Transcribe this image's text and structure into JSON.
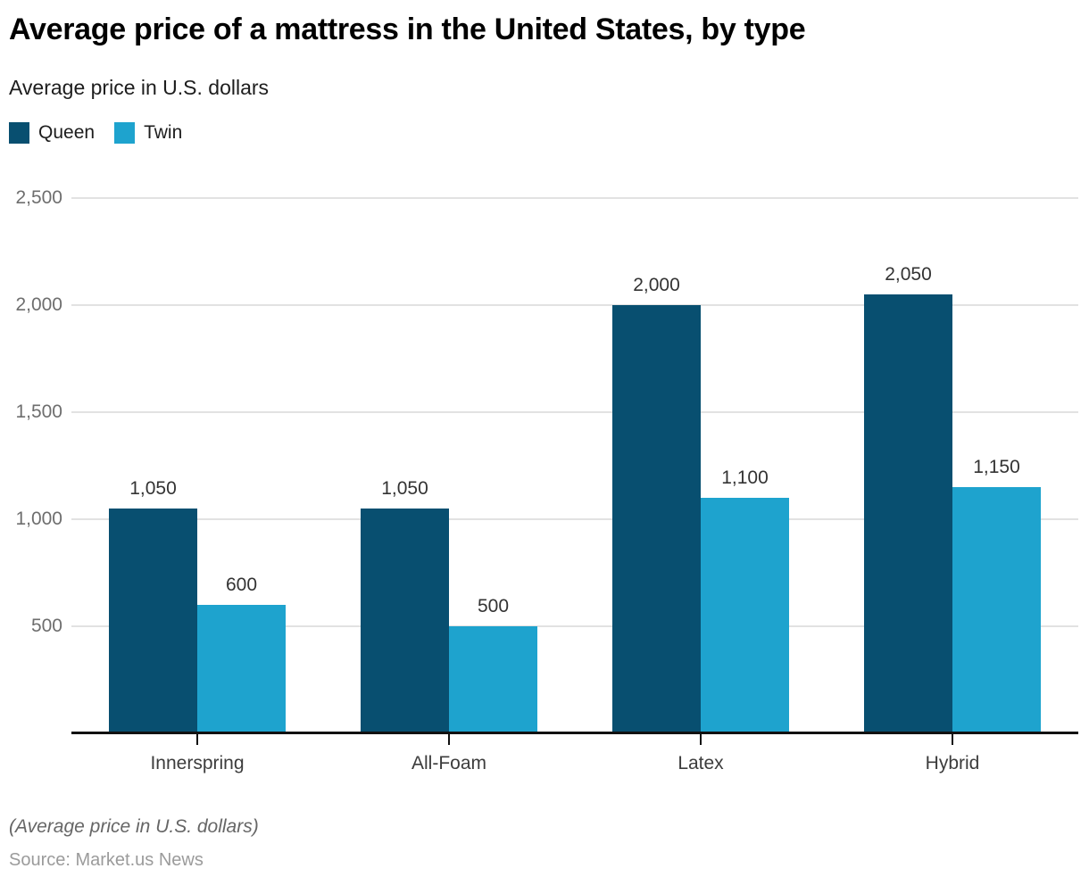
{
  "header": {
    "title": "Average price of a mattress in the United States, by type",
    "subtitle": "Average price in U.S. dollars"
  },
  "chart_data": {
    "type": "bar",
    "title": "Average price of a mattress in the United States, by type",
    "ylabel": "Average price in U.S. dollars",
    "xlabel": "",
    "categories": [
      "Innerspring",
      "All-Foam",
      "Latex",
      "Hybrid"
    ],
    "series": [
      {
        "name": "Queen",
        "color": "#084f70",
        "values": [
          1050,
          1050,
          2000,
          2050
        ],
        "labels": [
          "1,050",
          "1,050",
          "2,000",
          "2,050"
        ]
      },
      {
        "name": "Twin",
        "color": "#1ea3ce",
        "values": [
          600,
          500,
          1100,
          1150
        ],
        "labels": [
          "600",
          "500",
          "1,100",
          "1,150"
        ]
      }
    ],
    "yticks": [
      {
        "value": 500,
        "label": "500"
      },
      {
        "value": 1000,
        "label": "1,000"
      },
      {
        "value": 1500,
        "label": "1,500"
      },
      {
        "value": 2000,
        "label": "2,000"
      },
      {
        "value": 2500,
        "label": "2,500"
      }
    ],
    "ylim": [
      0,
      2500
    ],
    "grid": "horizontal",
    "legend_position": "top-left"
  },
  "footer": {
    "note": "(Average price in U.S. dollars)",
    "source": "Source: Market.us News"
  }
}
